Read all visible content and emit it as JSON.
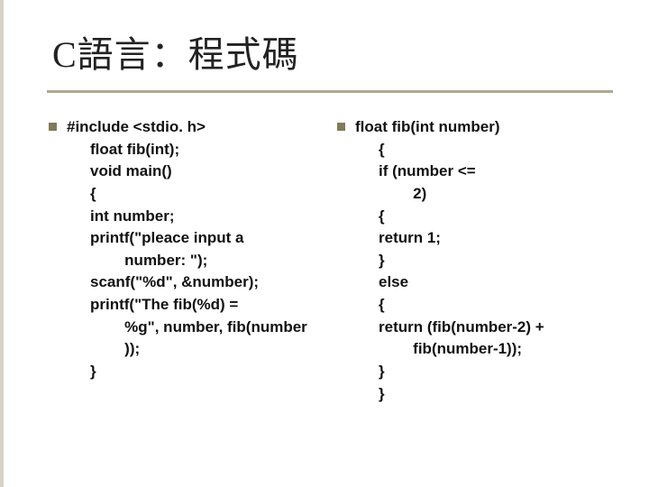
{
  "title": "C語言：程式碼",
  "title_fontsize": 40,
  "title_color": "#222222",
  "underline_color": "#b0a98f",
  "body_font": "Arial",
  "body_fontsize": 17,
  "body_weight": "bold",
  "body_color": "#111111",
  "bullet_color": "#827a5a",
  "background_color": "#ffffff",
  "left_border_color": "#d7d2c6",
  "left": {
    "head": "#include <stdio. h>",
    "lines": [
      "float fib(int);",
      "void main()",
      "{",
      "int number;",
      "printf(\"pleace input a",
      "   number: \");",
      "scanf(\"%d\", &number);",
      "printf(\"The fib(%d) =",
      "   %g\", number, fib(number",
      "   ));",
      "}"
    ],
    "line_indent": [
      1,
      1,
      1,
      1,
      1,
      2,
      1,
      1,
      2,
      2,
      1
    ]
  },
  "right": {
    "head": "float fib(int number)",
    "lines": [
      "{",
      "if (number <=",
      "   2)",
      "{",
      "return 1;",
      "}",
      "else",
      "{",
      "return (fib(number-2) +",
      "   fib(number-1));",
      "}",
      "}"
    ],
    "line_indent": [
      1,
      1,
      2,
      1,
      1,
      1,
      1,
      1,
      1,
      2,
      1,
      1
    ]
  }
}
